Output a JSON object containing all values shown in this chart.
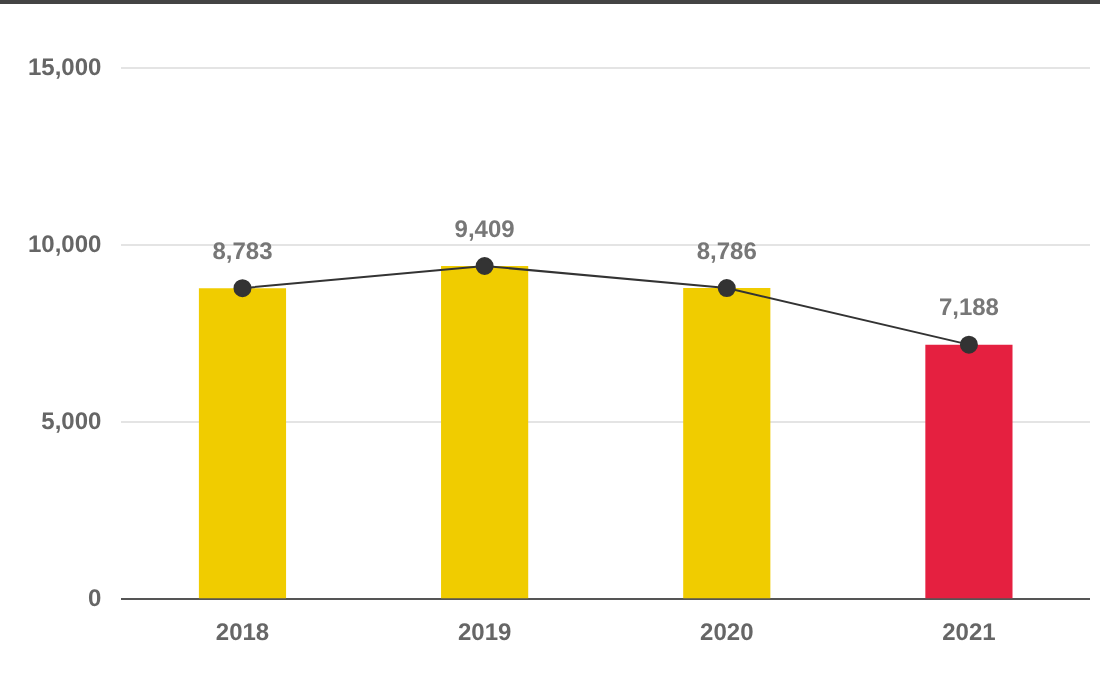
{
  "chart_data": {
    "type": "bar",
    "categories": [
      "2018",
      "2019",
      "2020",
      "2021"
    ],
    "series": [
      {
        "colors": [
          "#f0cc00",
          "#f0cc00",
          "#f0cc00",
          "#e52040"
        ],
        "values": [
          8783,
          9409,
          8786,
          7188
        ]
      },
      {
        "type": "line",
        "color": "#333333",
        "values": [
          8783,
          9409,
          8786,
          7188
        ],
        "value_labels": [
          "8,783",
          "9,409",
          "8,786",
          "7,188"
        ]
      }
    ],
    "ylim": [
      0,
      15000
    ],
    "yticks": [
      0,
      {
        "value": 5000,
        "label": "5,000"
      },
      {
        "value": 10000,
        "label": "10,000"
      },
      {
        "value": 15000,
        "label": "15,000"
      }
    ],
    "grid": "y",
    "marker": "circle",
    "legend": false
  }
}
